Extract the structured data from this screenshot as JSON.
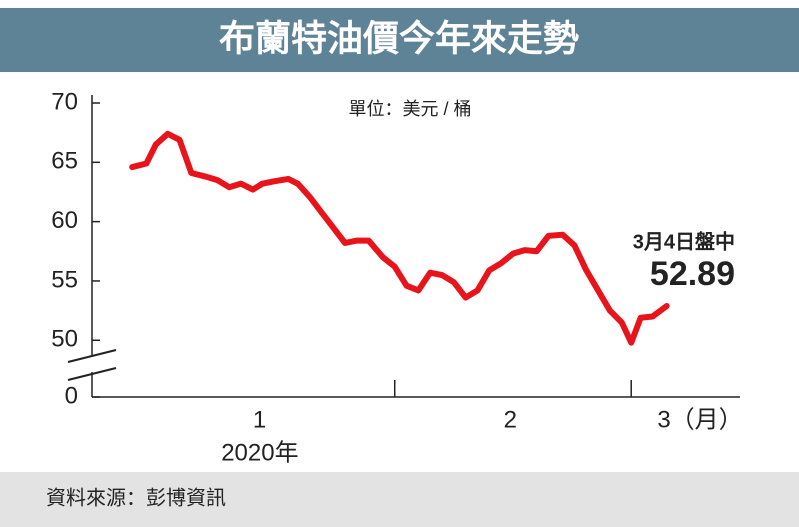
{
  "chart_data": {
    "type": "line",
    "title": "布蘭特油價今年來走勢",
    "unit": "單位：美元 / 桶",
    "source": "資料來源：彭博資訊",
    "color": "#e8141b",
    "x": [
      0.89,
      0.95,
      0.99,
      1.04,
      1.09,
      1.14,
      1.2,
      1.25,
      1.3,
      1.35,
      1.4,
      1.44,
      1.49,
      1.55,
      1.59,
      1.64,
      1.69,
      1.74,
      1.79,
      1.84,
      1.89,
      1.95,
      2.0,
      2.05,
      2.1,
      2.15,
      2.2,
      2.25,
      2.3,
      2.35,
      2.4,
      2.45,
      2.5,
      2.55,
      2.6,
      2.65,
      2.71,
      2.76,
      2.81,
      2.86,
      2.91,
      2.96,
      3.0,
      3.04,
      3.09,
      3.15
    ],
    "values": [
      64.6,
      64.9,
      66.5,
      67.4,
      66.9,
      64.1,
      63.8,
      63.5,
      62.9,
      63.2,
      62.7,
      63.2,
      63.4,
      63.6,
      63.2,
      62.1,
      60.8,
      59.5,
      58.2,
      58.4,
      58.4,
      57.0,
      56.2,
      54.6,
      54.2,
      55.7,
      55.5,
      54.9,
      53.6,
      54.2,
      55.9,
      56.5,
      57.3,
      57.6,
      57.5,
      58.8,
      58.9,
      58.0,
      55.9,
      54.2,
      52.5,
      51.5,
      49.8,
      51.9,
      52.0,
      52.89
    ],
    "last_point_label": "3月4日盤中",
    "xlim": [
      0.72,
      3.46
    ],
    "xticks": [
      {
        "value": 1.43,
        "label": "1"
      },
      {
        "value": 2.49,
        "label": "2"
      },
      {
        "value": 3.14,
        "label": "3（月）"
      }
    ],
    "x_tick_marks": [
      2,
      3
    ],
    "year_label": "2020年",
    "ylim": [
      0,
      70
    ],
    "y_break": [
      0,
      48
    ],
    "yticks": [
      0,
      50,
      55,
      60,
      65,
      70
    ]
  }
}
